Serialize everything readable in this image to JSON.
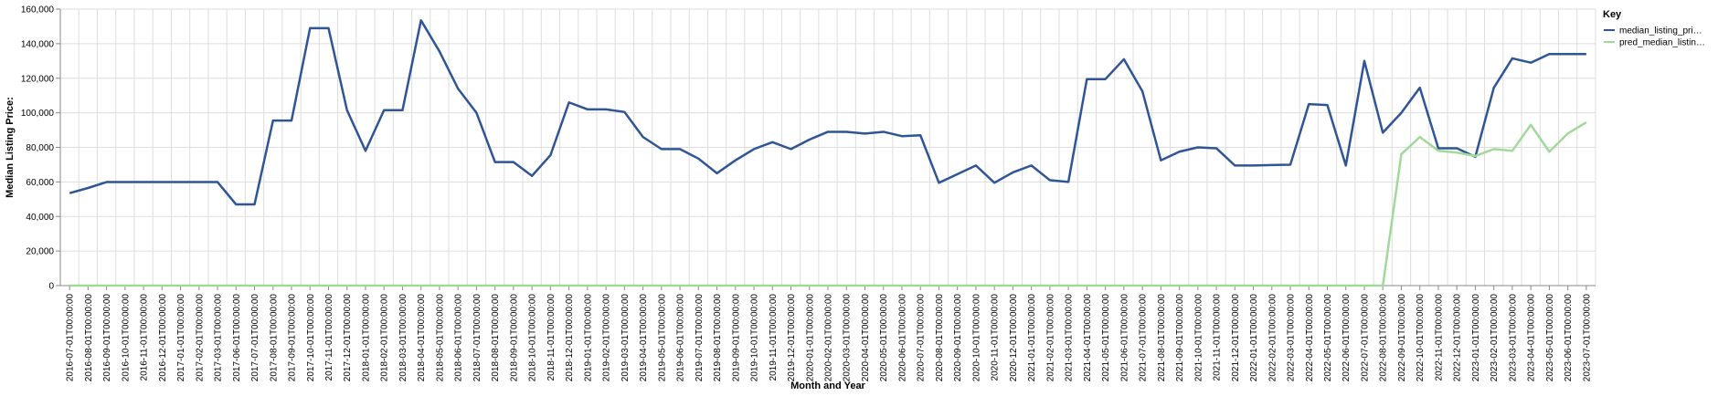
{
  "chart_data": {
    "type": "line",
    "xlabel": "Month and Year",
    "ylabel": "Median Listing Price:",
    "ylim": [
      0,
      160000
    ],
    "y_ticks": [
      0,
      20000,
      40000,
      60000,
      80000,
      100000,
      120000,
      140000,
      160000
    ],
    "y_tick_labels": [
      "0",
      "20,000",
      "40,000",
      "60,000",
      "80,000",
      "100,000",
      "120,000",
      "140,000",
      "160,000"
    ],
    "grid": true,
    "legend": {
      "title": "Key",
      "placement": "right",
      "entries": [
        {
          "label": "median_listing_pri…",
          "color": "#2f5597"
        },
        {
          "label": "pred_median_listin…",
          "color": "#a1d99b"
        }
      ]
    },
    "x": [
      "2016-07-01T00:00:00",
      "2016-08-01T00:00:00",
      "2016-09-01T00:00:00",
      "2016-10-01T00:00:00",
      "2016-11-01T00:00:00",
      "2016-12-01T00:00:00",
      "2017-01-01T00:00:00",
      "2017-02-01T00:00:00",
      "2017-03-01T00:00:00",
      "2017-06-01T00:00:00",
      "2017-07-01T00:00:00",
      "2017-08-01T00:00:00",
      "2017-09-01T00:00:00",
      "2017-10-01T00:00:00",
      "2017-11-01T00:00:00",
      "2017-12-01T00:00:00",
      "2018-01-01T00:00:00",
      "2018-02-01T00:00:00",
      "2018-03-01T00:00:00",
      "2018-04-01T00:00:00",
      "2018-05-01T00:00:00",
      "2018-06-01T00:00:00",
      "2018-07-01T00:00:00",
      "2018-08-01T00:00:00",
      "2018-09-01T00:00:00",
      "2018-10-01T00:00:00",
      "2018-11-01T00:00:00",
      "2018-12-01T00:00:00",
      "2019-01-01T00:00:00",
      "2019-02-01T00:00:00",
      "2019-03-01T00:00:00",
      "2019-04-01T00:00:00",
      "2019-05-01T00:00:00",
      "2019-06-01T00:00:00",
      "2019-07-01T00:00:00",
      "2019-08-01T00:00:00",
      "2019-09-01T00:00:00",
      "2019-10-01T00:00:00",
      "2019-11-01T00:00:00",
      "2019-12-01T00:00:00",
      "2020-01-01T00:00:00",
      "2020-02-01T00:00:00",
      "2020-03-01T00:00:00",
      "2020-04-01T00:00:00",
      "2020-05-01T00:00:00",
      "2020-06-01T00:00:00",
      "2020-07-01T00:00:00",
      "2020-08-01T00:00:00",
      "2020-09-01T00:00:00",
      "2020-10-01T00:00:00",
      "2020-11-01T00:00:00",
      "2020-12-01T00:00:00",
      "2021-01-01T00:00:00",
      "2021-02-01T00:00:00",
      "2021-03-01T00:00:00",
      "2021-04-01T00:00:00",
      "2021-05-01T00:00:00",
      "2021-06-01T00:00:00",
      "2021-07-01T00:00:00",
      "2021-08-01T00:00:00",
      "2021-09-01T00:00:00",
      "2021-10-01T00:00:00",
      "2021-11-01T00:00:00",
      "2021-12-01T00:00:00",
      "2022-01-01T00:00:00",
      "2022-02-01T00:00:00",
      "2022-03-01T00:00:00",
      "2022-04-01T00:00:00",
      "2022-05-01T00:00:00",
      "2022-06-01T00:00:00",
      "2022-07-01T00:00:00",
      "2022-08-01T00:00:00",
      "2022-09-01T00:00:00",
      "2022-10-01T00:00:00",
      "2022-11-01T00:00:00",
      "2022-12-01T00:00:00",
      "2023-01-01T00:00:00",
      "2023-02-01T00:00:00",
      "2023-03-01T00:00:00",
      "2023-04-01T00:00:00",
      "2023-05-01T00:00:00",
      "2023-06-01T00:00:00",
      "2023-07-01T00:00:00"
    ],
    "series": [
      {
        "name": "median_listing_pri…",
        "color": "#2f5597",
        "values": [
          53500,
          56500,
          59900,
          59900,
          59900,
          59900,
          59900,
          59900,
          59900,
          47000,
          47000,
          95500,
          95500,
          149000,
          149000,
          101500,
          78000,
          101500,
          101500,
          153500,
          135500,
          114000,
          100000,
          71500,
          71500,
          63500,
          75500,
          106000,
          102000,
          102000,
          100500,
          86000,
          79000,
          79000,
          73500,
          65000,
          72500,
          79000,
          83000,
          79000,
          84500,
          89000,
          89000,
          88000,
          89000,
          86500,
          87000,
          59500,
          64500,
          69500,
          59500,
          65500,
          69500,
          61000,
          60000,
          119500,
          119500,
          131000,
          112500,
          72500,
          77500,
          80000,
          79500,
          69500,
          69500,
          69800,
          70000,
          105000,
          104500,
          69500,
          130000,
          88500,
          100000,
          114500,
          79500,
          79500,
          74500,
          114500,
          131500,
          129000,
          134000,
          134000,
          134000
        ]
      },
      {
        "name": "pred_median_listin…",
        "color": "#a1d99b",
        "values": [
          0,
          0,
          0,
          0,
          0,
          0,
          0,
          0,
          0,
          0,
          0,
          0,
          0,
          0,
          0,
          0,
          0,
          0,
          0,
          0,
          0,
          0,
          0,
          0,
          0,
          0,
          0,
          0,
          0,
          0,
          0,
          0,
          0,
          0,
          0,
          0,
          0,
          0,
          0,
          0,
          0,
          0,
          0,
          0,
          0,
          0,
          0,
          0,
          0,
          0,
          0,
          0,
          0,
          0,
          0,
          0,
          0,
          0,
          0,
          0,
          0,
          0,
          0,
          0,
          0,
          0,
          0,
          0,
          0,
          0,
          0,
          0,
          76000,
          86000,
          78000,
          77000,
          75000,
          79000,
          78000,
          93000,
          77500,
          88000,
          94500
        ]
      }
    ]
  }
}
